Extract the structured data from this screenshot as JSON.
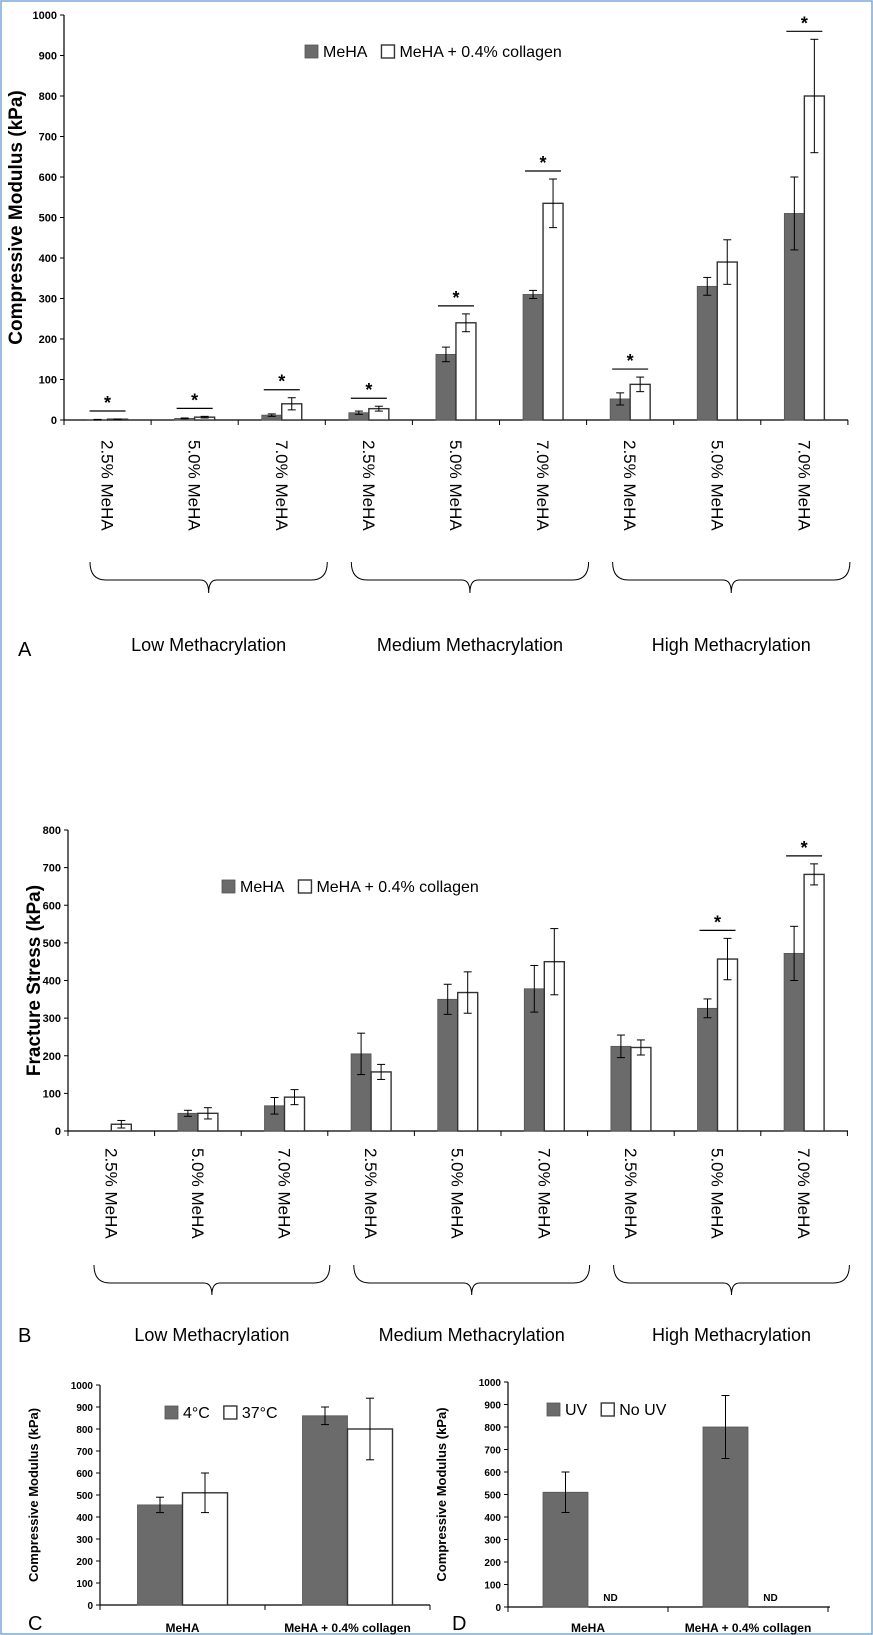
{
  "chart_data": [
    {
      "panel": "A",
      "type": "bar",
      "ylabel": "Compressive Modulus (kPa)",
      "ylim": [
        0,
        1000
      ],
      "yticks": [
        0,
        100,
        200,
        300,
        400,
        500,
        600,
        700,
        800,
        900,
        1000
      ],
      "categories": [
        "2.5% MeHA",
        "5.0% MeHA",
        "7.0% MeHA",
        "2.5% MeHA",
        "5.0% MeHA",
        "7.0% MeHA",
        "2.5% MeHA",
        "5.0% MeHA",
        "7.0% MeHA"
      ],
      "groups": [
        {
          "label": "Low Methacrylation",
          "categories": [
            0,
            1,
            2
          ]
        },
        {
          "label": "Medium Methacrylation",
          "categories": [
            3,
            4,
            5
          ]
        },
        {
          "label": "High Methacrylation",
          "categories": [
            6,
            7,
            8
          ]
        }
      ],
      "legend_position": "top-center",
      "series": [
        {
          "name": "MeHA",
          "style": "filled",
          "color": "#6b6b6b",
          "values": [
            1,
            4,
            12,
            18,
            162,
            310,
            52,
            330,
            510
          ],
          "errors": [
            0.5,
            1,
            3,
            4,
            18,
            10,
            15,
            22,
            90
          ]
        },
        {
          "name": "MeHA + 0.4% collagen",
          "style": "open",
          "color": "#ffffff",
          "values": [
            2,
            7,
            40,
            28,
            240,
            535,
            88,
            390,
            800
          ],
          "errors": [
            0.5,
            2,
            15,
            6,
            22,
            60,
            18,
            55,
            140
          ]
        }
      ],
      "significance": [
        0,
        1,
        2,
        3,
        4,
        5,
        6,
        8
      ],
      "significance_marker": "*",
      "panel_letter": "A"
    },
    {
      "panel": "B",
      "type": "bar",
      "ylabel": "Fracture Stress (kPa)",
      "ylim": [
        0,
        800
      ],
      "yticks": [
        0,
        100,
        200,
        300,
        400,
        500,
        600,
        700,
        800
      ],
      "categories": [
        "2.5% MeHA",
        "5.0% MeHA",
        "7.0% MeHA",
        "2.5% MeHA",
        "5.0% MeHA",
        "7.0% MeHA",
        "2.5% MeHA",
        "5.0% MeHA",
        "7.0% MeHA"
      ],
      "groups": [
        {
          "label": "Low Methacrylation",
          "categories": [
            0,
            1,
            2
          ]
        },
        {
          "label": "Medium Methacrylation",
          "categories": [
            3,
            4,
            5
          ]
        },
        {
          "label": "High Methacrylation",
          "categories": [
            6,
            7,
            8
          ]
        }
      ],
      "legend_position": "top-center",
      "series": [
        {
          "name": "MeHA",
          "style": "filled",
          "color": "#6b6b6b",
          "values": [
            0,
            47,
            67,
            205,
            350,
            378,
            225,
            326,
            472
          ],
          "errors": [
            0,
            8,
            22,
            55,
            40,
            62,
            30,
            25,
            72
          ]
        },
        {
          "name": "MeHA + 0.4% collagen",
          "style": "open",
          "color": "#ffffff",
          "values": [
            18,
            47,
            90,
            157,
            368,
            450,
            222,
            457,
            682
          ],
          "errors": [
            10,
            15,
            20,
            20,
            55,
            88,
            20,
            55,
            28
          ]
        }
      ],
      "significance": [
        7,
        8
      ],
      "significance_marker": "*",
      "panel_letter": "B"
    },
    {
      "panel": "C",
      "type": "bar",
      "ylabel": "Compressive Modulus (kPa)",
      "ylim": [
        0,
        1000
      ],
      "yticks": [
        0,
        100,
        200,
        300,
        400,
        500,
        600,
        700,
        800,
        900,
        1000
      ],
      "categories": [
        "MeHA",
        "MeHA + 0.4% collagen"
      ],
      "legend_position": "top-center",
      "series": [
        {
          "name": "4°C",
          "style": "filled",
          "color": "#6b6b6b",
          "values": [
            455,
            860
          ],
          "errors": [
            35,
            40
          ]
        },
        {
          "name": "37°C",
          "style": "open",
          "color": "#ffffff",
          "values": [
            510,
            800
          ],
          "errors": [
            90,
            140
          ]
        }
      ],
      "panel_letter": "C"
    },
    {
      "panel": "D",
      "type": "bar",
      "ylabel": "Compressive Modulus (kPa)",
      "ylim": [
        0,
        1000
      ],
      "yticks": [
        0,
        100,
        200,
        300,
        400,
        500,
        600,
        700,
        800,
        900,
        1000
      ],
      "categories": [
        "MeHA",
        "MeHA + 0.4% collagen"
      ],
      "legend_position": "top-left",
      "series": [
        {
          "name": "UV",
          "style": "filled",
          "color": "#6b6b6b",
          "values": [
            510,
            800
          ],
          "errors": [
            90,
            140
          ]
        },
        {
          "name": "No UV",
          "style": "open",
          "color": "#ffffff",
          "values": [
            0,
            0
          ],
          "errors": [
            0,
            0
          ],
          "annotation": "ND"
        }
      ],
      "panel_letter": "D"
    }
  ]
}
